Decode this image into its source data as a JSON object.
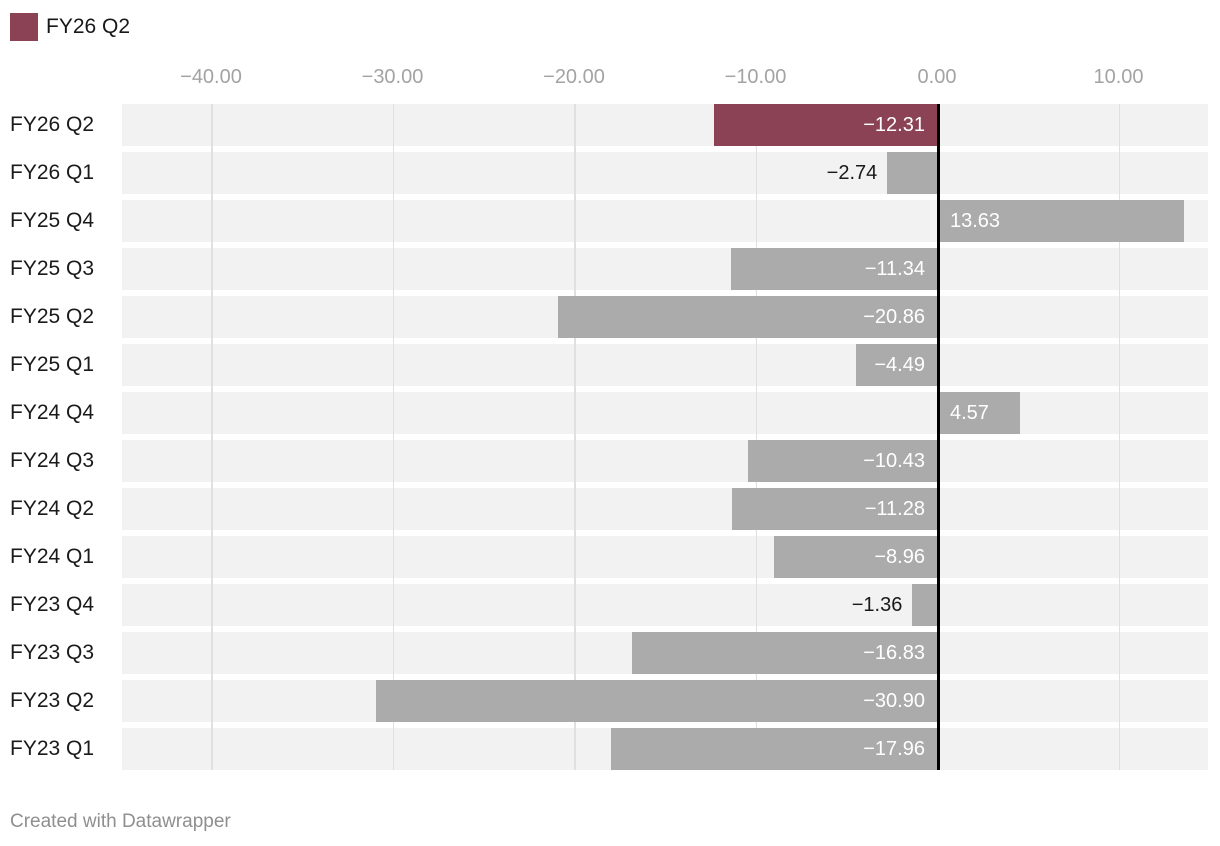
{
  "legend": {
    "label": "FY26 Q2",
    "color": "#8a4254"
  },
  "footer": {
    "text": "Created with Datawrapper"
  },
  "chart_data": {
    "type": "bar",
    "orientation": "horizontal",
    "title": "",
    "xlabel": "",
    "ylabel": "",
    "categories": [
      "FY26 Q2",
      "FY26 Q1",
      "FY25 Q4",
      "FY25 Q3",
      "FY25 Q2",
      "FY25 Q1",
      "FY24 Q4",
      "FY24 Q3",
      "FY24 Q2",
      "FY24 Q1",
      "FY23 Q4",
      "FY23 Q3",
      "FY23 Q2",
      "FY23 Q1"
    ],
    "values": [
      -12.31,
      -2.74,
      13.63,
      -11.34,
      -20.86,
      -4.49,
      4.57,
      -10.43,
      -11.28,
      -8.96,
      -1.36,
      -16.83,
      -30.9,
      -17.96
    ],
    "value_labels": [
      "−12.31",
      "−2.74",
      "13.63",
      "−11.34",
      "−20.86",
      "−4.49",
      "4.57",
      "−10.43",
      "−11.28",
      "−8.96",
      "−1.36",
      "−16.83",
      "−30.90",
      "−17.96"
    ],
    "highlight_category": "FY26 Q2",
    "highlight_index": 0,
    "x_ticks": [
      -40,
      -30,
      -20,
      -10,
      0,
      10
    ],
    "x_tick_labels": [
      "−40.00",
      "−30.00",
      "−20.00",
      "−10.00",
      "0.00",
      "10.00"
    ],
    "xlim": [
      -44.9,
      14.9
    ],
    "grid": true,
    "legend_position": "top-left",
    "colors": {
      "bar_default": "#ababab",
      "bar_highlight": "#8a4254",
      "row_band": "#f2f2f2",
      "gridline": "#e0e0e0",
      "zero_line": "#000000",
      "tick_text": "#a3a3a3",
      "category_text": "#1a1a1a",
      "value_inside_text": "#ffffff",
      "value_outside_text": "#1a1a1a",
      "footer_text": "#8f8f8f"
    }
  }
}
